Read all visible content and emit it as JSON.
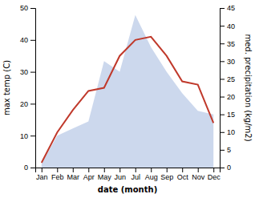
{
  "chart_data": {
    "type": "line",
    "xlabel": "date (month)",
    "ylabel": "max temp (C)",
    "y2label": "med. precipitation (kg/m2)",
    "categories": [
      "Jan",
      "Feb",
      "Mar",
      "Apr",
      "May",
      "Jun",
      "Jul",
      "Aug",
      "Sep",
      "Oct",
      "Nov",
      "Dec"
    ],
    "series": [
      {
        "type": "area",
        "axis": "y2",
        "color": "#8fa8d8",
        "values": [
          1,
          9,
          11,
          13,
          30,
          27,
          43,
          34,
          27,
          21,
          16,
          15
        ]
      },
      {
        "type": "line",
        "color": "#c0392b",
        "values": [
          1.5,
          11.0,
          18.0,
          24.0,
          25.0,
          35.0,
          40.0,
          41.0,
          35.0,
          27.0,
          26.0,
          14.0
        ]
      }
    ],
    "ylim": [
      0,
      50
    ],
    "yticks": [
      0,
      10,
      20,
      30,
      40,
      50
    ],
    "y2lim": [
      0,
      45
    ],
    "y2ticks": [
      0,
      5,
      10,
      15,
      20,
      25,
      30,
      35,
      40,
      45
    ],
    "grid": false
  }
}
